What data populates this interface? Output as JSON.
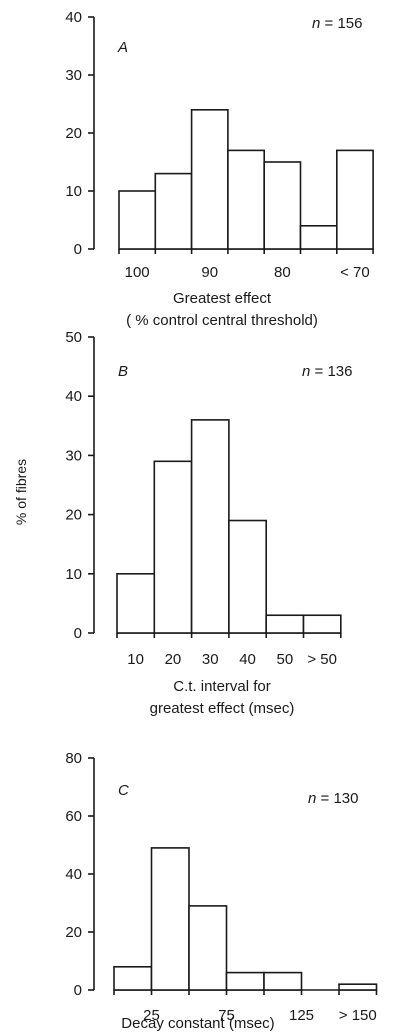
{
  "figure": {
    "ylabel": "% of fibres",
    "n_prefix": "n",
    "n_separator": " = "
  },
  "chart_data": [
    {
      "type": "bar",
      "panel_label": "A",
      "n": "156",
      "ylim": [
        0,
        40
      ],
      "yticks": [
        "0",
        "10",
        "20",
        "30",
        "40"
      ],
      "values": [
        10,
        13,
        24,
        17,
        15,
        4,
        17
      ],
      "xtick_labels": [
        "100",
        "90",
        "80",
        "< 70"
      ],
      "xlabel_lines": [
        "Greatest effect",
        "( % control central threshold)"
      ]
    },
    {
      "type": "bar",
      "panel_label": "B",
      "n": "136",
      "ylim": [
        0,
        50
      ],
      "yticks": [
        "0",
        "10",
        "20",
        "30",
        "40",
        "50"
      ],
      "values": [
        10,
        29,
        36,
        19,
        3,
        3
      ],
      "xtick_labels": [
        "10",
        "20",
        "30",
        "40",
        "50",
        "> 50"
      ],
      "xlabel_lines": [
        "C.t. interval for",
        "greatest effect (msec)"
      ]
    },
    {
      "type": "bar",
      "panel_label": "C",
      "n": "130",
      "ylim": [
        0,
        80
      ],
      "yticks": [
        "0",
        "20",
        "40",
        "60",
        "80"
      ],
      "values": [
        8,
        49,
        29,
        6,
        6,
        0,
        2
      ],
      "xtick_labels": [
        "25",
        "75",
        "125",
        "> 150"
      ],
      "xlabel_lines": [
        "Decay constant (msec)"
      ]
    }
  ]
}
